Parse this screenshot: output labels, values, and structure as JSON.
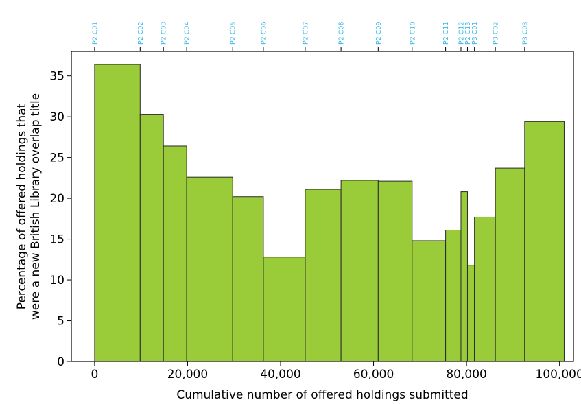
{
  "chart_data": {
    "type": "bar",
    "bar_style": "variable-width histogram",
    "xlabel": "Cumulative number of offered holdings submitted",
    "ylabel_lines": [
      "Percentage of offered holdings that",
      "were a new British Library overlap title"
    ],
    "xlim": [
      -5000,
      103000
    ],
    "ylim": [
      0,
      38
    ],
    "xticks": [
      0,
      20000,
      40000,
      60000,
      80000,
      100000
    ],
    "xtick_labels": [
      "0",
      "20,000",
      "40,000",
      "60,000",
      "80,000",
      "100,000"
    ],
    "yticks": [
      0,
      5,
      10,
      15,
      20,
      25,
      30,
      35
    ],
    "ytick_labels": [
      "0",
      "5",
      "10",
      "15",
      "20",
      "25",
      "30",
      "35"
    ],
    "grid": false,
    "legend": "none",
    "colors": {
      "bar_fill": "#9acb38",
      "bar_edge": "#2a2a2a",
      "top_label": "#3cb8e6"
    },
    "bars": [
      {
        "label": "P2 C01",
        "x_start": 0,
        "x_end": 9800,
        "value": 36.4
      },
      {
        "label": "P2 C02",
        "x_start": 9800,
        "x_end": 14800,
        "value": 30.3
      },
      {
        "label": "P2 C03",
        "x_start": 14800,
        "x_end": 19800,
        "value": 26.4
      },
      {
        "label": "P2 C04",
        "x_start": 19800,
        "x_end": 29700,
        "value": 22.6
      },
      {
        "label": "P2 C05",
        "x_start": 29700,
        "x_end": 36300,
        "value": 20.2
      },
      {
        "label": "P2 C06",
        "x_start": 36300,
        "x_end": 45300,
        "value": 12.8
      },
      {
        "label": "P2 C07",
        "x_start": 45300,
        "x_end": 53000,
        "value": 21.1
      },
      {
        "label": "P2 C08",
        "x_start": 53000,
        "x_end": 61000,
        "value": 22.2
      },
      {
        "label": "P2 C09",
        "x_start": 61000,
        "x_end": 68300,
        "value": 22.1
      },
      {
        "label": "P2 C10",
        "x_start": 68300,
        "x_end": 75500,
        "value": 14.8
      },
      {
        "label": "P2 C11",
        "x_start": 75500,
        "x_end": 78800,
        "value": 16.1
      },
      {
        "label": "P2 C12",
        "x_start": 78800,
        "x_end": 80200,
        "value": 20.8
      },
      {
        "label": "P2 C13",
        "x_start": 80200,
        "x_end": 81700,
        "value": 11.8
      },
      {
        "label": "P3 C01",
        "x_start": 81700,
        "x_end": 86200,
        "value": 17.7
      },
      {
        "label": "P3 C02",
        "x_start": 86200,
        "x_end": 92500,
        "value": 23.7
      },
      {
        "label": "P3 C03",
        "x_start": 92500,
        "x_end": 101000,
        "value": 29.4
      }
    ]
  }
}
